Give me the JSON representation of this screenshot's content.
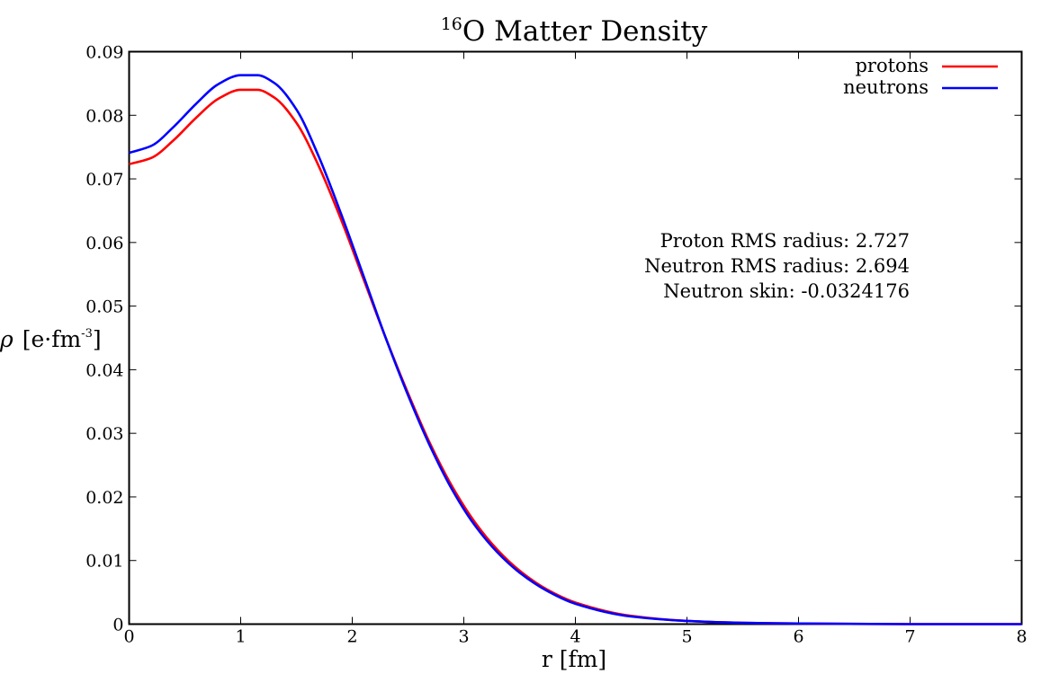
{
  "chart_data": {
    "type": "line",
    "title": {
      "superscript": "16",
      "text": "O Matter Density"
    },
    "xlabel": "r [fm]",
    "ylabel": {
      "symbol": "ρ",
      "unit_prefix": "[e·fm",
      "unit_exponent": "-3",
      "unit_suffix": "]"
    },
    "xlim": [
      0,
      8
    ],
    "ylim": [
      0,
      0.09
    ],
    "xticks": [
      0,
      1,
      2,
      3,
      4,
      5,
      6,
      7,
      8
    ],
    "yticks": [
      0,
      0.01,
      0.02,
      0.03,
      0.04,
      0.05,
      0.06,
      0.07,
      0.08,
      0.09
    ],
    "xtick_labels": [
      "0",
      "1",
      "2",
      "3",
      "4",
      "5",
      "6",
      "7",
      "8"
    ],
    "ytick_labels": [
      "0",
      "0.01",
      "0.02",
      "0.03",
      "0.04",
      "0.05",
      "0.06",
      "0.07",
      "0.08",
      "0.09"
    ],
    "grid": false,
    "legend_position": "top-right",
    "series": [
      {
        "name": "protons",
        "color": "#ff0000",
        "x": [
          0,
          0.2,
          0.4,
          0.6,
          0.8,
          1.0,
          1.15,
          1.3,
          1.5,
          1.7,
          1.9,
          2.1,
          2.3,
          2.5,
          2.7,
          2.9,
          3.1,
          3.3,
          3.5,
          3.75,
          4.0,
          4.5,
          5.0,
          5.5,
          6.0,
          7.0,
          8.0
        ],
        "y": [
          0.0723,
          0.0733,
          0.0761,
          0.0796,
          0.0826,
          0.084,
          0.084,
          0.0828,
          0.0788,
          0.072,
          0.0636,
          0.0543,
          0.045,
          0.0363,
          0.0283,
          0.0215,
          0.016,
          0.0117,
          0.0084,
          0.0054,
          0.0034,
          0.0013,
          0.0005,
          0.0002,
          0.0001,
          0.0,
          0.0
        ]
      },
      {
        "name": "neutrons",
        "color": "#0000ff",
        "x": [
          0,
          0.2,
          0.4,
          0.6,
          0.8,
          1.0,
          1.15,
          1.3,
          1.5,
          1.7,
          1.9,
          2.1,
          2.3,
          2.5,
          2.7,
          2.9,
          3.1,
          3.3,
          3.5,
          3.75,
          4.0,
          4.5,
          5.0,
          5.5,
          6.0,
          7.0,
          8.0
        ],
        "y": [
          0.0741,
          0.0752,
          0.0782,
          0.0818,
          0.0849,
          0.0863,
          0.0863,
          0.0851,
          0.0809,
          0.0735,
          0.0645,
          0.0548,
          0.045,
          0.036,
          0.0279,
          0.021,
          0.0155,
          0.0113,
          0.0081,
          0.0052,
          0.0032,
          0.0012,
          0.0005,
          0.0002,
          0.0001,
          0.0,
          0.0
        ]
      }
    ],
    "annotations": [
      "Proton RMS radius: 2.727",
      "Neutron RMS radius: 2.694",
      "Neutron skin: -0.0324176"
    ]
  }
}
